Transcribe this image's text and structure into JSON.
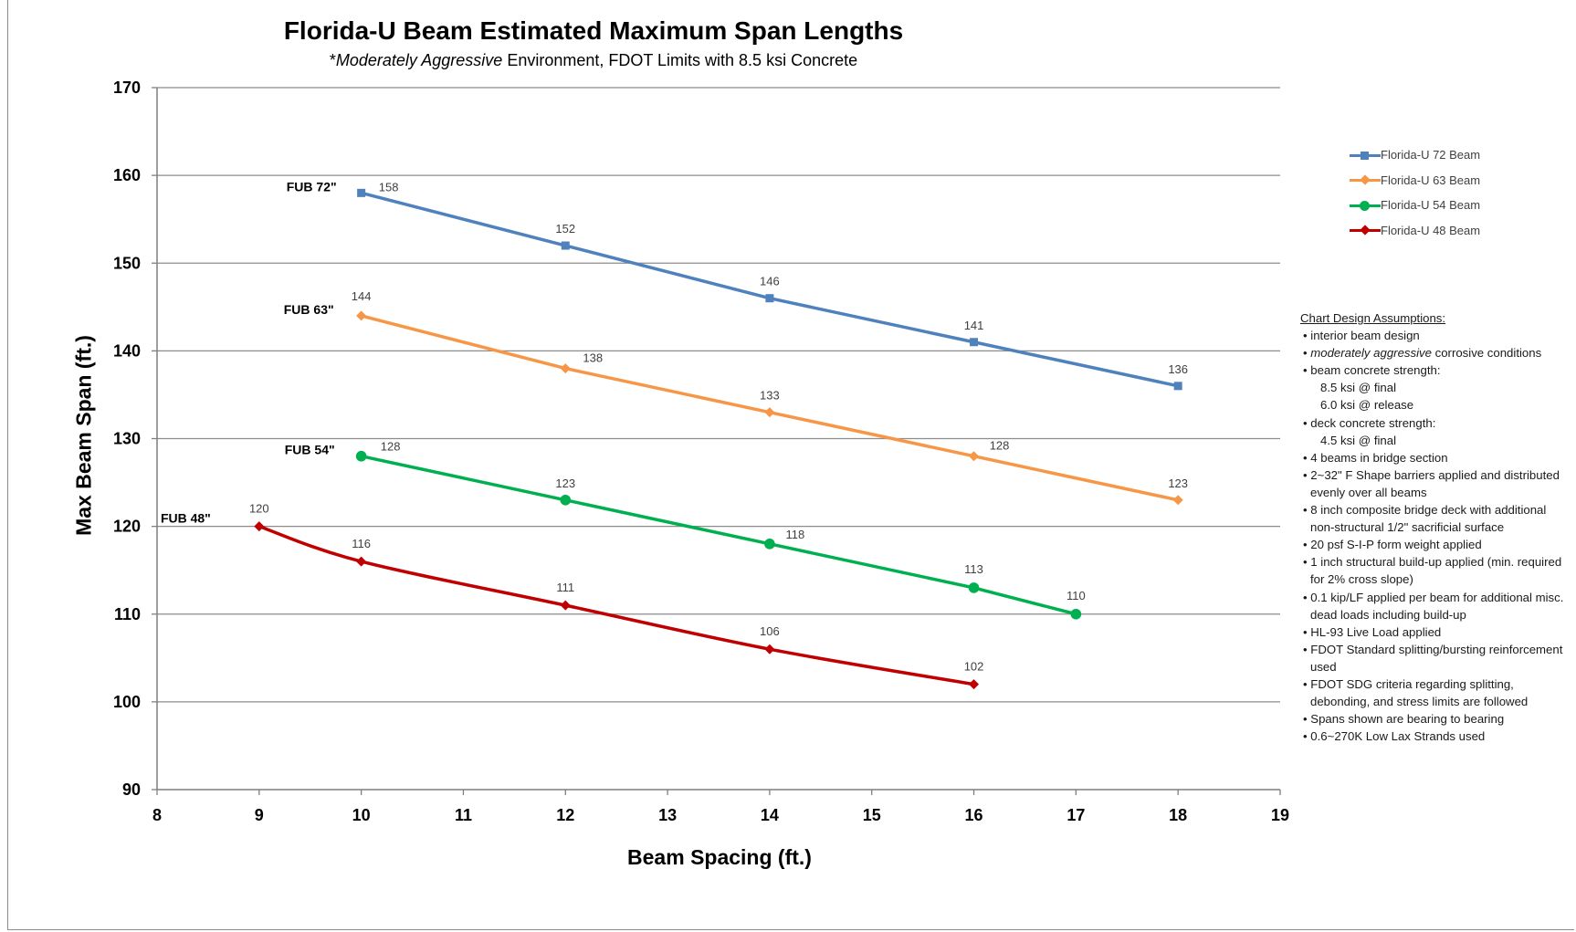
{
  "title": "Florida-U Beam Estimated Maximum Span Lengths",
  "subtitle_parts": [
    "*",
    "Moderately Aggressive",
    " Environment, FDOT Limits with 8.5 ksi Concrete"
  ],
  "assumptions": {
    "heading": "Chart Design Assumptions:",
    "lines": [
      {
        "kind": "item",
        "text": "• interior beam design"
      },
      {
        "kind": "item_italic",
        "bullet": "• ",
        "italic": "moderately aggressive",
        "rest": " corrosive conditions"
      },
      {
        "kind": "item",
        "text": "• beam concrete strength:"
      },
      {
        "kind": "indent",
        "text": "8.5 ksi @ final"
      },
      {
        "kind": "indent",
        "text": "6.0 ksi @ release"
      },
      {
        "kind": "item",
        "text": "• deck concrete strength:"
      },
      {
        "kind": "indent",
        "text": "4.5 ksi @ final"
      },
      {
        "kind": "item",
        "text": "• 4 beams in bridge section"
      },
      {
        "kind": "item",
        "text": "• 2~32\" F Shape barriers applied and distributed evenly over all beams"
      },
      {
        "kind": "item",
        "text": "•  8 inch composite bridge deck with additional non-structural 1/2\" sacrificial surface"
      },
      {
        "kind": "item",
        "text": "• 20 psf S-I-P form weight applied"
      },
      {
        "kind": "item",
        "text": "• 1 inch structural build-up applied (min. required for 2% cross slope)"
      },
      {
        "kind": "item",
        "text": "• 0.1 kip/LF applied per beam for additional misc. dead loads including build-up"
      },
      {
        "kind": "item",
        "text": "• HL-93 Live Load applied"
      },
      {
        "kind": "item",
        "text": "•  FDOT Standard splitting/bursting reinforcement used"
      },
      {
        "kind": "item",
        "text": "• FDOT SDG criteria regarding splitting, debonding, and stress limits are followed"
      },
      {
        "kind": "item",
        "text": "• Spans shown are bearing to bearing"
      },
      {
        "kind": "item",
        "text": "• 0.6~270K Low Lax Strands used"
      }
    ]
  },
  "chart_data": {
    "type": "line",
    "title": "Florida-U Beam Estimated Maximum Span Lengths",
    "subtitle": "*Moderately Aggressive Environment, FDOT Limits with 8.5 ksi Concrete",
    "xlabel": "Beam Spacing (ft.)",
    "ylabel": "Max Beam Span (ft.)",
    "xlim": [
      8,
      19
    ],
    "ylim": [
      90,
      170
    ],
    "xticks": [
      8,
      9,
      10,
      11,
      12,
      13,
      14,
      15,
      16,
      17,
      18,
      19
    ],
    "yticks": [
      90,
      100,
      110,
      120,
      130,
      140,
      150,
      160,
      170
    ],
    "grid": "horizontal",
    "legend_position": "right",
    "series": [
      {
        "name": "Florida-U 72 Beam",
        "tag": "FUB 72\"",
        "color": "#4f81bd",
        "marker": "square",
        "x": [
          10,
          12,
          14,
          16,
          18
        ],
        "y": [
          158,
          152,
          146,
          141,
          136
        ]
      },
      {
        "name": "Florida-U 63 Beam",
        "tag": "FUB 63\"",
        "color": "#f79646",
        "marker": "diamond",
        "x": [
          10,
          12,
          14,
          16,
          18
        ],
        "y": [
          144,
          138,
          133,
          128,
          123
        ]
      },
      {
        "name": "Florida-U 54 Beam",
        "tag": "FUB 54\"",
        "color": "#00b050",
        "marker": "circle",
        "x": [
          10,
          12,
          14,
          16,
          17
        ],
        "y": [
          128,
          123,
          118,
          113,
          110
        ]
      },
      {
        "name": "Florida-U 48 Beam",
        "tag": "FUB 48\"",
        "color": "#c00000",
        "marker": "diamond",
        "x": [
          9,
          10,
          12,
          14,
          16
        ],
        "y": [
          120,
          116,
          111,
          106,
          102
        ]
      }
    ]
  }
}
